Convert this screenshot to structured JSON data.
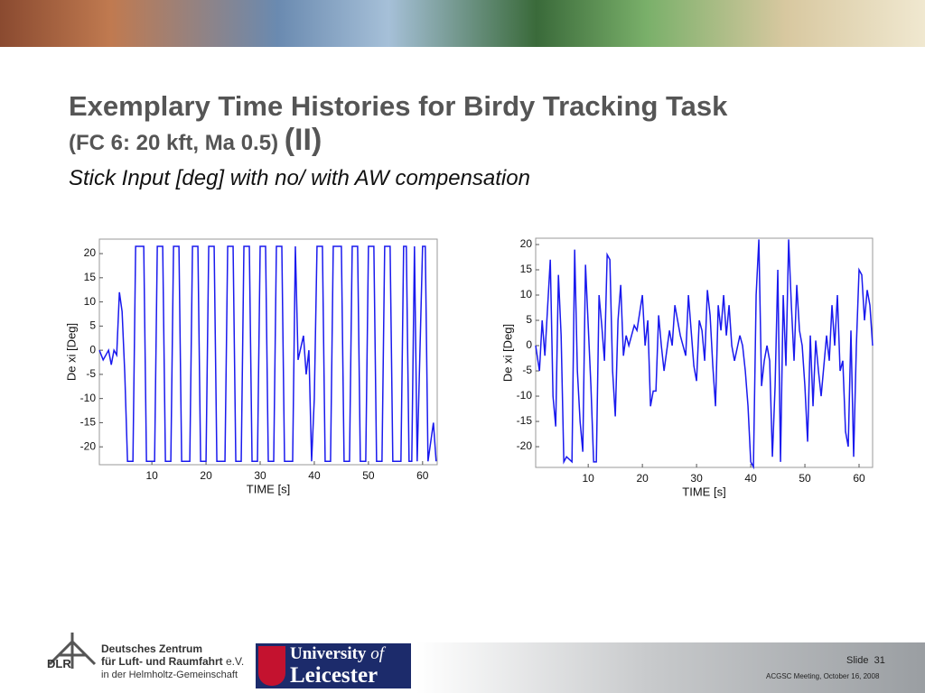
{
  "slide": {
    "title_line1": "Exemplary Time Histories for Birdy Tracking Task",
    "title_line2": "(FC 6: 20 kft, Ma 0.5)",
    "title_part": "(II)",
    "subtitle": "Stick Input [deg] with no/ with AW compensation",
    "footer": {
      "dlr_line1": "Deutsches Zentrum",
      "dlr_line2": "für Luft- und Raumfahrt",
      "dlr_ev": "e.V.",
      "dlr_line3": "in der Helmholtz-Gemeinschaft",
      "dlr_abbr": "DLR",
      "uni_line1": "University",
      "uni_of": "of",
      "uni_line2": "Leicester",
      "slide_label": "Slide",
      "slide_number": "31",
      "meeting": "ACGSC Meeting, October 16, 2008"
    }
  },
  "chart_data": [
    {
      "type": "line",
      "xlabel": "TIME [s]",
      "ylabel": "De xi [Deg]",
      "xlim": [
        0.3,
        62.7
      ],
      "ylim": [
        -23.7,
        23
      ],
      "xticks": [
        10,
        20,
        30,
        40,
        50,
        60
      ],
      "yticks": [
        -20,
        -15,
        -10,
        -5,
        0,
        5,
        10,
        15,
        20
      ],
      "x": [
        0.3,
        1,
        2,
        2.5,
        3,
        3.5,
        4,
        4.5,
        5,
        5.5,
        6.5,
        7,
        8.5,
        9,
        10.5,
        11,
        12,
        12.5,
        13.5,
        14,
        15,
        15.5,
        17,
        17.5,
        18.5,
        19,
        20,
        20.5,
        21.5,
        22,
        23.5,
        24,
        25,
        25.5,
        26.5,
        27,
        28,
        28.5,
        29.5,
        30,
        31,
        31.5,
        32.5,
        33,
        34,
        34.5,
        36,
        36.5,
        37,
        38,
        38.5,
        39,
        39.5,
        40,
        40.5,
        41.5,
        42,
        43,
        43.5,
        45,
        45.5,
        46.5,
        47,
        48,
        48.5,
        49.5,
        50,
        51,
        51.5,
        52.5,
        53,
        54,
        54.5,
        56,
        56.5,
        57,
        57.5,
        58,
        58.5,
        59,
        60,
        60.5,
        61,
        62,
        62.5
      ],
      "series": [
        {
          "color": "#1a1aee",
          "values": [
            0,
            -2,
            0,
            -3,
            0,
            -1,
            12,
            8,
            -5,
            -23,
            -23,
            21.5,
            21.5,
            -23,
            -23,
            21.5,
            21.5,
            -23,
            -23,
            21.5,
            21.5,
            -23,
            -23,
            21.5,
            21.5,
            -23,
            -23,
            21.5,
            21.5,
            -23,
            -23,
            21.5,
            21.5,
            -23,
            -23,
            21.5,
            21.5,
            -23,
            -23,
            21.5,
            21.5,
            -23,
            -23,
            21.5,
            21.5,
            -23,
            -23,
            21.5,
            -2,
            3,
            -5,
            0,
            -23,
            -10,
            21.5,
            21.5,
            -23,
            -23,
            21.5,
            21.5,
            -23,
            -23,
            21.5,
            21.5,
            -23,
            -23,
            21.5,
            21.5,
            -23,
            -23,
            21.5,
            21.5,
            -23,
            -23,
            21.5,
            21.5,
            -23,
            -23,
            21.5,
            -23,
            21.5,
            21.5,
            -23,
            -15,
            -23
          ]
        }
      ]
    },
    {
      "type": "line",
      "xlabel": "TIME [s]",
      "ylabel": "De xi [Deg]",
      "xlim": [
        0.3,
        62.5
      ],
      "ylim": [
        -24.1,
        21.25
      ],
      "xticks": [
        10,
        20,
        30,
        40,
        50,
        60
      ],
      "yticks": [
        -20,
        -15,
        -10,
        -5,
        0,
        5,
        10,
        15,
        20
      ],
      "x": [
        0.3,
        1,
        1.5,
        2,
        3,
        3.5,
        4,
        4.5,
        5,
        5.5,
        6,
        7,
        7.5,
        8,
        8.5,
        9,
        9.5,
        10.5,
        11,
        11.5,
        12,
        12.5,
        13,
        13.5,
        14,
        14.5,
        15,
        15.5,
        16,
        16.5,
        17,
        17.5,
        18,
        18.5,
        19,
        20,
        20.5,
        21,
        21.5,
        22,
        22.5,
        23,
        23.5,
        24,
        25,
        25.5,
        26,
        26.5,
        27,
        28,
        28.5,
        29,
        29.5,
        30,
        30.5,
        31,
        31.5,
        32,
        32.5,
        33,
        33.5,
        34,
        34.5,
        35,
        35.5,
        36,
        36.5,
        37,
        38,
        38.5,
        39,
        39.5,
        40,
        40.5,
        41,
        41.5,
        42,
        42.5,
        43,
        43.5,
        44,
        44.5,
        45,
        45.5,
        46,
        46.5,
        47,
        47.5,
        48,
        48.5,
        49,
        49.5,
        50,
        50.5,
        51,
        51.5,
        52,
        52.5,
        53,
        54,
        54.5,
        55,
        55.5,
        56,
        56.5,
        57,
        57.5,
        58,
        58.5,
        59,
        59.5,
        60,
        60.5,
        61,
        61.5,
        62,
        62.5
      ],
      "series": [
        {
          "color": "#1a1aee",
          "values": [
            0,
            -5,
            5,
            -2,
            17,
            -10,
            -16,
            14,
            2,
            -23,
            -22,
            -23,
            19,
            -5,
            -15,
            -21,
            16,
            -8,
            -23,
            -23,
            10,
            4,
            -3,
            18,
            17,
            -5,
            -14,
            5,
            12,
            -2,
            2,
            0,
            2,
            4,
            3,
            10,
            0,
            5,
            -12,
            -9,
            -9,
            6,
            0,
            -5,
            3,
            0,
            8,
            5,
            2,
            -2,
            10,
            3,
            -4,
            -7,
            5,
            3,
            -3,
            11,
            6,
            -4,
            -12,
            8,
            3,
            10,
            2,
            8,
            0,
            -3,
            2,
            0,
            -5,
            -12,
            -23,
            -24,
            10,
            21,
            -8,
            -3,
            0,
            -3,
            -22,
            -8,
            15,
            -23,
            10,
            -4,
            21,
            8,
            -3,
            12,
            3,
            0,
            -8,
            -19,
            2,
            -12,
            1,
            -5,
            -10,
            2,
            -3,
            8,
            0,
            10,
            -5,
            -3,
            -17,
            -20,
            3,
            -22,
            0,
            15,
            14,
            5,
            11,
            8,
            0
          ]
        }
      ]
    }
  ]
}
